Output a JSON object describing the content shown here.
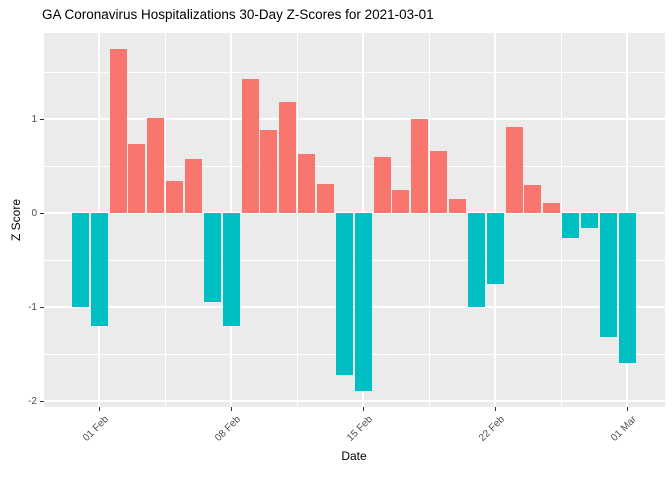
{
  "page": {
    "title": "GA Coronavirus Hospitalizations 30-Day Z-Scores for 2021-03-01"
  },
  "chart_data": {
    "type": "bar",
    "title": "GA Coronavirus Hospitalizations 30-Day Z-Scores for 2021-03-01",
    "xlabel": "Date",
    "ylabel": "Z Score",
    "categories": [
      "31 Jan",
      "01 Feb",
      "02 Feb",
      "03 Feb",
      "04 Feb",
      "05 Feb",
      "06 Feb",
      "07 Feb",
      "08 Feb",
      "09 Feb",
      "10 Feb",
      "11 Feb",
      "12 Feb",
      "13 Feb",
      "14 Feb",
      "15 Feb",
      "16 Feb",
      "17 Feb",
      "18 Feb",
      "19 Feb",
      "20 Feb",
      "21 Feb",
      "22 Feb",
      "23 Feb",
      "24 Feb",
      "25 Feb",
      "26 Feb",
      "27 Feb",
      "28 Feb",
      "01 Mar"
    ],
    "values": [
      -1.0,
      -1.2,
      1.75,
      0.73,
      1.01,
      0.34,
      0.57,
      -0.95,
      -1.2,
      1.43,
      0.88,
      1.18,
      0.63,
      0.31,
      -1.72,
      -1.89,
      0.6,
      0.24,
      1.0,
      0.66,
      0.15,
      -1.0,
      -0.75,
      0.91,
      0.3,
      0.11,
      -0.27,
      -0.16,
      -1.32,
      -1.6
    ],
    "x_ticks": [
      {
        "index": 1,
        "label": "01 Feb"
      },
      {
        "index": 8,
        "label": "08 Feb"
      },
      {
        "index": 15,
        "label": "15 Feb"
      },
      {
        "index": 22,
        "label": "22 Feb"
      },
      {
        "index": 29,
        "label": "01 Mar"
      }
    ],
    "y_ticks": [
      1,
      0,
      -1,
      -2
    ],
    "y_minor_ticks": [
      1.5,
      0.5,
      -0.5,
      -1.5
    ],
    "ylim": [
      -2.06,
      1.92
    ],
    "grid": true,
    "legend": "none",
    "bar_color_positive": "#F8766D",
    "bar_color_negative": "#00BFC4",
    "panel_background": "#EBEBEB",
    "gridline_color": "#FFFFFF",
    "axis_text_color": "#4D4D4D",
    "title_color": "#000000"
  }
}
